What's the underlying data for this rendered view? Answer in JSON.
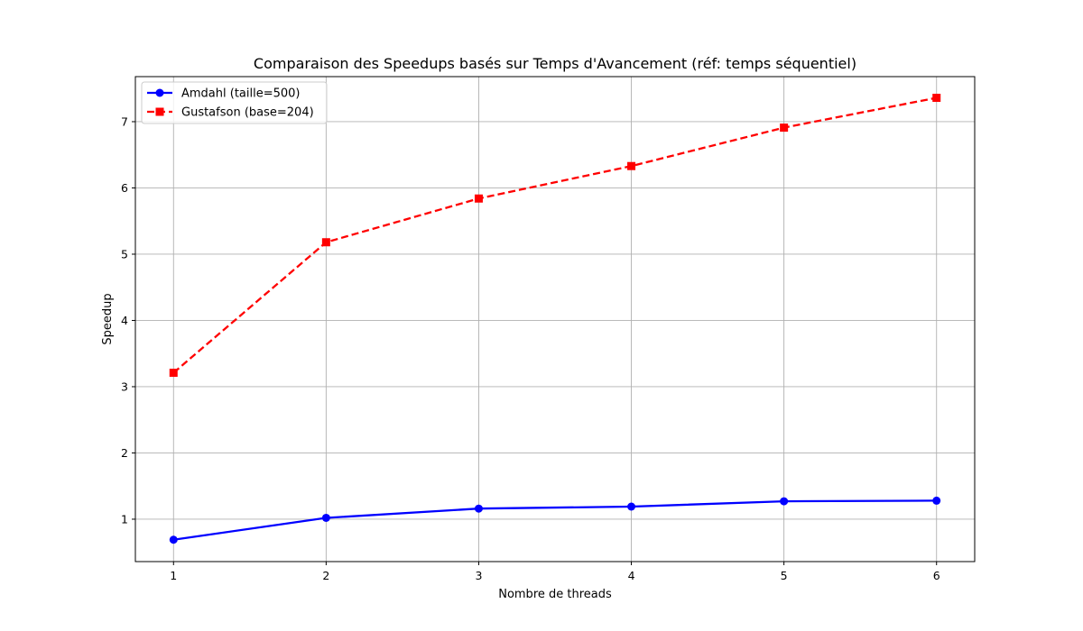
{
  "chart_data": {
    "type": "line",
    "title": "Comparaison des Speedups basés sur Temps d'Avancement (réf: temps séquentiel)",
    "xlabel": "Nombre de threads",
    "ylabel": "Speedup",
    "x": [
      1,
      2,
      3,
      4,
      5,
      6
    ],
    "xticks": [
      "1",
      "2",
      "3",
      "4",
      "5",
      "6"
    ],
    "yticks": [
      "1",
      "2",
      "3",
      "4",
      "5",
      "6",
      "7"
    ],
    "xlim": [
      0.75,
      6.25
    ],
    "ylim": [
      0.36,
      7.68
    ],
    "grid": true,
    "legend_position": "upper-left",
    "series": [
      {
        "name": "Amdahl (taille=500)",
        "values": [
          0.69,
          1.02,
          1.16,
          1.19,
          1.27,
          1.28
        ],
        "color": "#0000ff",
        "line_style": "solid",
        "marker": "circle"
      },
      {
        "name": "Gustafson (base=204)",
        "values": [
          3.21,
          5.18,
          5.84,
          6.33,
          6.91,
          7.36
        ],
        "color": "#ff0000",
        "line_style": "dashed",
        "marker": "square"
      }
    ]
  }
}
